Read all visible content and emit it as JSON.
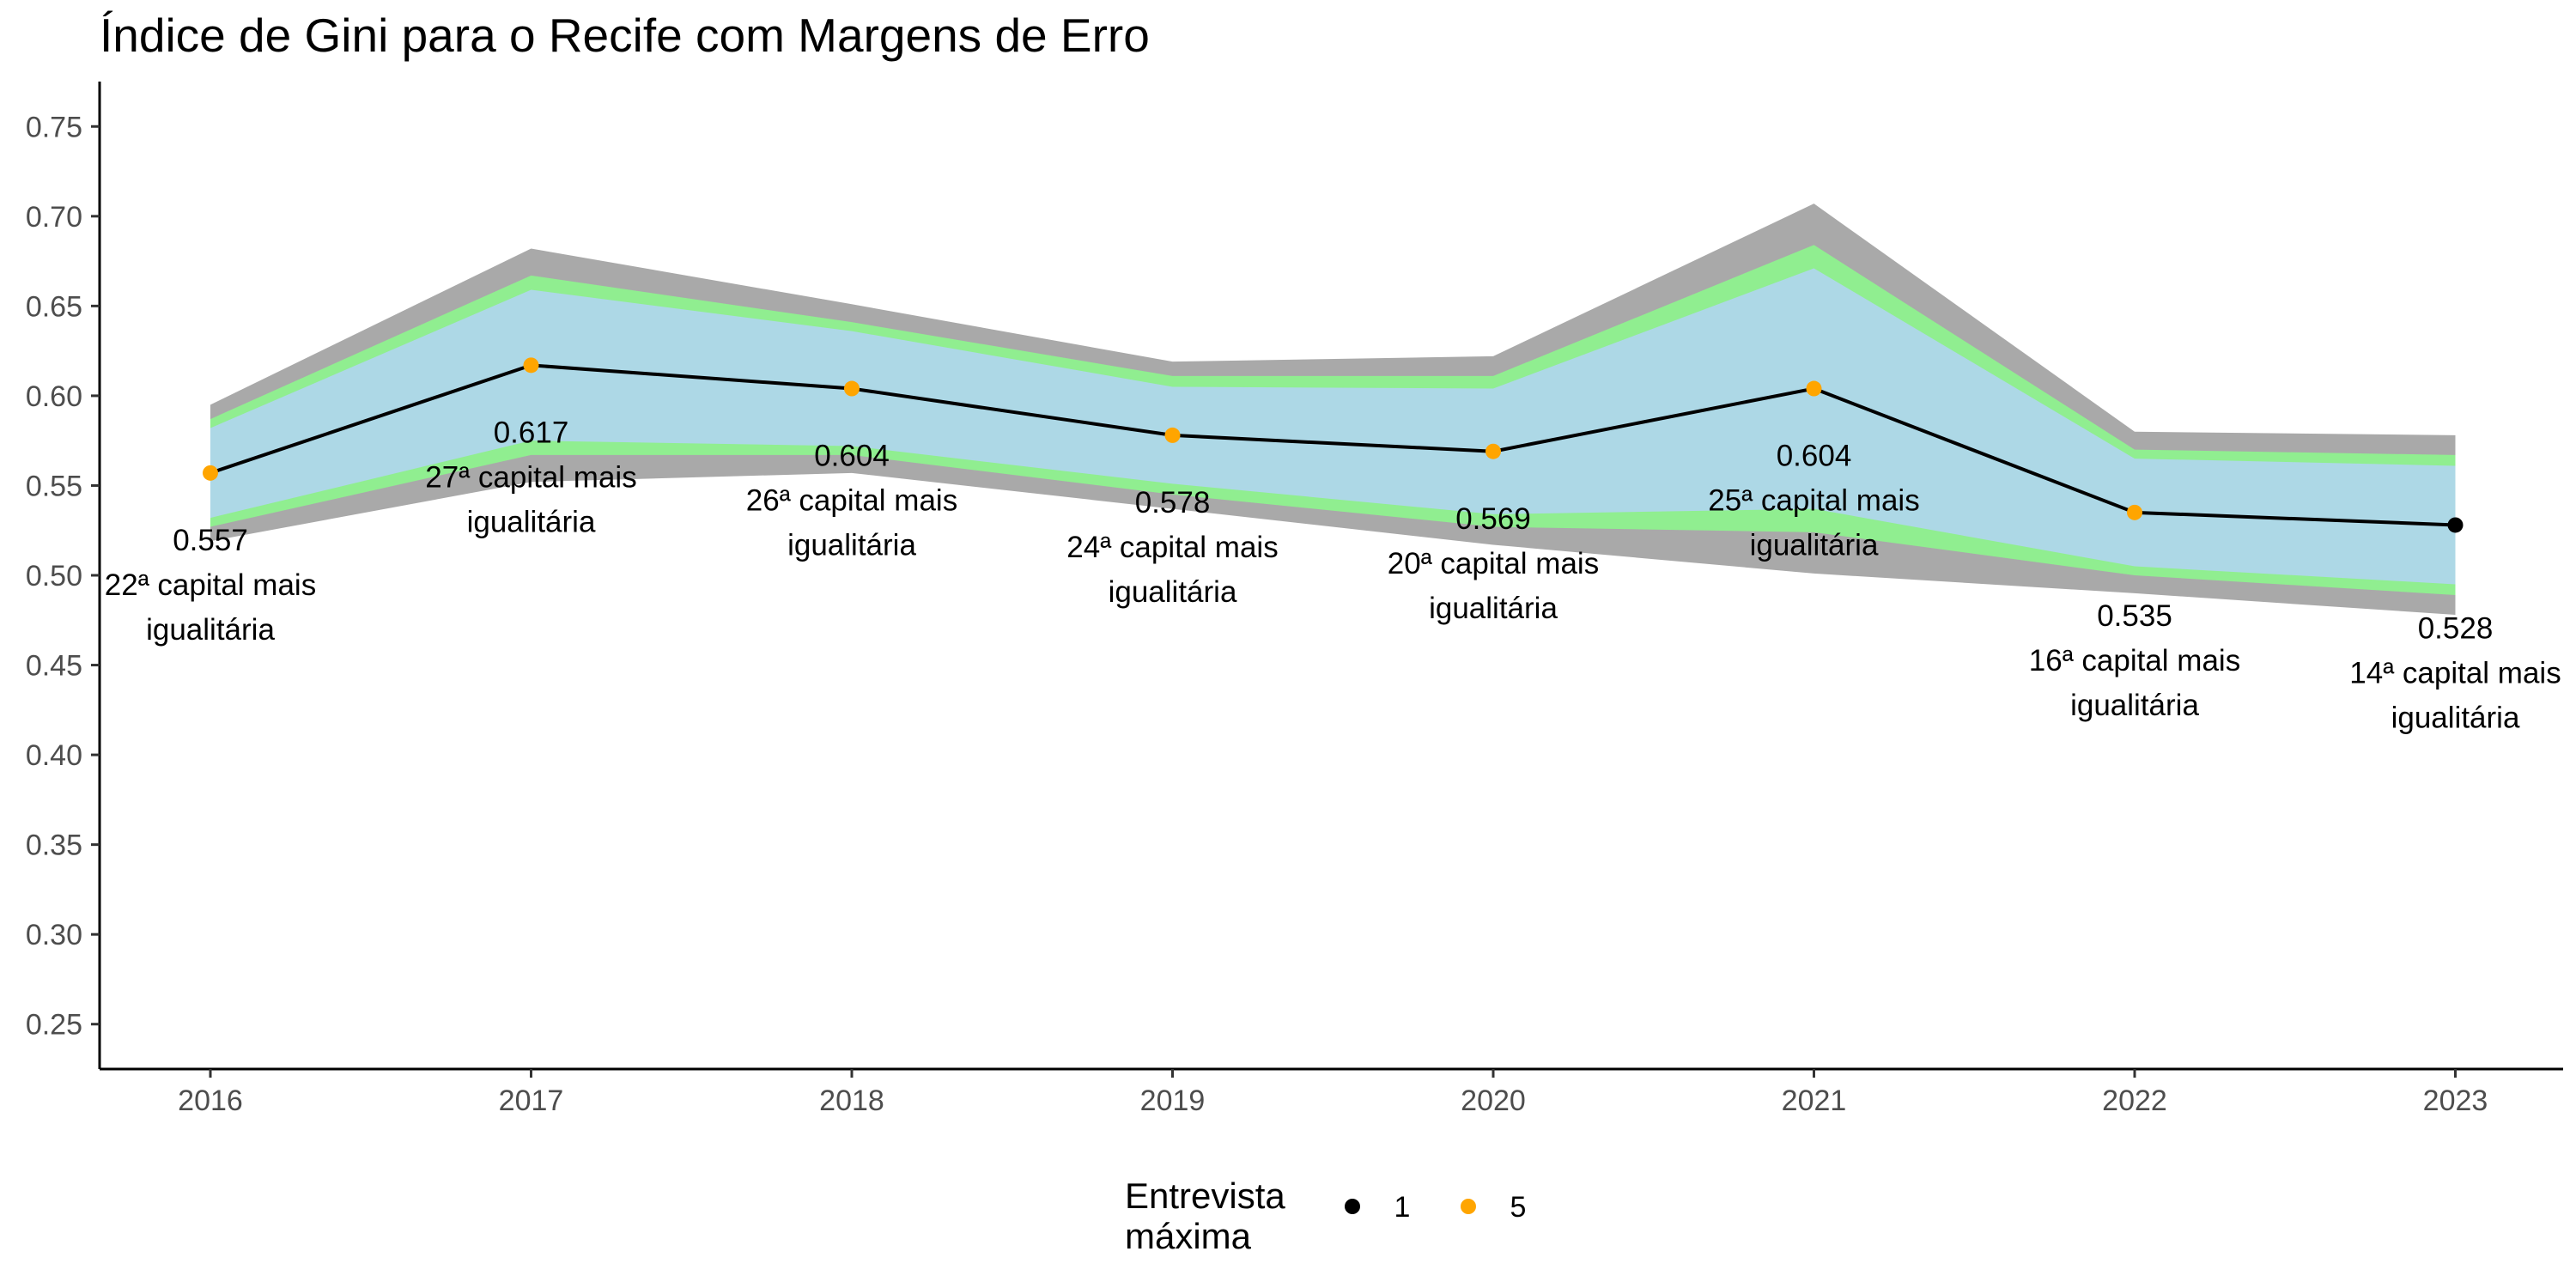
{
  "chart_data": {
    "type": "line",
    "title": "Índice de Gini para o Recife com Margens de Erro",
    "xlabel": "",
    "ylabel": "",
    "x": [
      "2016",
      "2017",
      "2018",
      "2019",
      "2020",
      "2021",
      "2022",
      "2023"
    ],
    "ylim": [
      0.225,
      0.775
    ],
    "yticks": [
      "0.25",
      "0.30",
      "0.35",
      "0.40",
      "0.45",
      "0.50",
      "0.55",
      "0.60",
      "0.65",
      "0.70",
      "0.75"
    ],
    "grid": false,
    "series": [
      {
        "values": [
          0.557,
          0.617,
          0.604,
          0.578,
          0.569,
          0.604,
          0.535,
          0.528
        ]
      }
    ],
    "bands": [
      {
        "color": "#a9a9a9",
        "upper": [
          0.595,
          0.682,
          0.651,
          0.619,
          0.622,
          0.707,
          0.58,
          0.578
        ],
        "lower": [
          0.519,
          0.552,
          0.557,
          0.537,
          0.517,
          0.501,
          0.49,
          0.478
        ]
      },
      {
        "color": "#90ee90",
        "upper": [
          0.587,
          0.667,
          0.641,
          0.611,
          0.611,
          0.684,
          0.57,
          0.567
        ],
        "lower": [
          0.527,
          0.567,
          0.567,
          0.545,
          0.527,
          0.524,
          0.5,
          0.489
        ]
      },
      {
        "color": "#add8e6",
        "upper": [
          0.582,
          0.659,
          0.636,
          0.605,
          0.604,
          0.671,
          0.565,
          0.561
        ],
        "lower": [
          0.532,
          0.575,
          0.572,
          0.551,
          0.534,
          0.537,
          0.505,
          0.495
        ]
      }
    ],
    "point_groups": [
      1,
      5,
      5,
      5,
      5,
      5,
      5,
      1
    ],
    "point_colors": [
      5,
      5,
      5,
      5,
      5,
      5,
      5,
      1
    ],
    "annotations": [
      {
        "value": "0.557",
        "rank": "22ª capital mais",
        "word": "igualitária"
      },
      {
        "value": "0.617",
        "rank": "27ª capital mais",
        "word": "igualitária"
      },
      {
        "value": "0.604",
        "rank": "26ª capital mais",
        "word": "igualitária"
      },
      {
        "value": "0.578",
        "rank": "24ª capital mais",
        "word": "igualitária"
      },
      {
        "value": "0.569",
        "rank": "20ª capital mais",
        "word": "igualitária"
      },
      {
        "value": "0.604",
        "rank": "25ª capital mais",
        "word": "igualitária"
      },
      {
        "value": "0.535",
        "rank": "16ª capital mais",
        "word": "igualitária"
      },
      {
        "value": "0.528",
        "rank": "14ª capital mais",
        "word": "igualitária"
      }
    ],
    "annotation_offsets": [
      0.068,
      0.068,
      0.068,
      0.068,
      0.068,
      0.068,
      0.088,
      0.088
    ],
    "legend": {
      "title_line1": "Entrevista",
      "title_line2": "máxima",
      "placement": "bottom",
      "items": [
        {
          "label": "1",
          "color": "#000000"
        },
        {
          "label": "5",
          "color": "#ffa500"
        }
      ]
    },
    "colors": {
      "line": "#000000",
      "point_1": "#000000",
      "point_5": "#ffa500"
    }
  }
}
